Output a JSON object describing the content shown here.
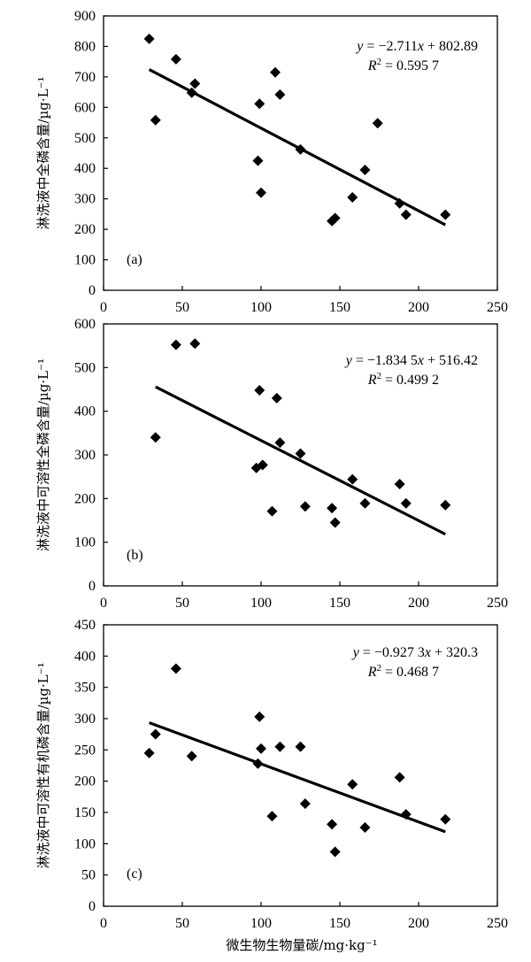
{
  "figure": {
    "xlabel_shared": "微生物生物量碳/mg·kg⁻¹"
  },
  "chart_data": [
    {
      "type": "scatter",
      "panel_label": "(a)",
      "ylabel": "淋洗液中全磷含量/µg·L⁻¹",
      "xlim": [
        0,
        250
      ],
      "ylim": [
        0,
        900
      ],
      "xticks": [
        0,
        50,
        100,
        150,
        200,
        250
      ],
      "yticks": [
        0,
        100,
        200,
        300,
        400,
        500,
        600,
        700,
        800,
        900
      ],
      "points": [
        {
          "x": 29,
          "y": 825
        },
        {
          "x": 33,
          "y": 558
        },
        {
          "x": 46,
          "y": 758
        },
        {
          "x": 56,
          "y": 648
        },
        {
          "x": 58,
          "y": 678
        },
        {
          "x": 98,
          "y": 425
        },
        {
          "x": 99,
          "y": 612
        },
        {
          "x": 100,
          "y": 320
        },
        {
          "x": 109,
          "y": 715
        },
        {
          "x": 112,
          "y": 642
        },
        {
          "x": 125,
          "y": 462
        },
        {
          "x": 145,
          "y": 227
        },
        {
          "x": 147,
          "y": 237
        },
        {
          "x": 158,
          "y": 305
        },
        {
          "x": 166,
          "y": 395
        },
        {
          "x": 174,
          "y": 548
        },
        {
          "x": 188,
          "y": 285
        },
        {
          "x": 192,
          "y": 248
        },
        {
          "x": 217,
          "y": 248
        }
      ],
      "fit": {
        "slope": -2.711,
        "intercept": 802.89,
        "x_range": [
          29,
          217
        ]
      },
      "equation": {
        "pre": "y",
        "mid": " = −2.711",
        "var": "x",
        "post": " + 802.89"
      },
      "r2": {
        "label": "R",
        "sup": "2",
        "value": " = 0.595 7"
      }
    },
    {
      "type": "scatter",
      "panel_label": "(b)",
      "ylabel": "淋洗液中可溶性全磷含量/µg·L⁻¹",
      "xlim": [
        0,
        250
      ],
      "ylim": [
        0,
        600
      ],
      "xticks": [
        0,
        50,
        100,
        150,
        200,
        250
      ],
      "yticks": [
        0,
        100,
        200,
        300,
        400,
        500,
        600
      ],
      "points": [
        {
          "x": 33,
          "y": 340
        },
        {
          "x": 46,
          "y": 552
        },
        {
          "x": 58,
          "y": 555
        },
        {
          "x": 97,
          "y": 270
        },
        {
          "x": 99,
          "y": 448
        },
        {
          "x": 101,
          "y": 277
        },
        {
          "x": 107,
          "y": 171
        },
        {
          "x": 110,
          "y": 430
        },
        {
          "x": 112,
          "y": 328
        },
        {
          "x": 125,
          "y": 303
        },
        {
          "x": 128,
          "y": 182
        },
        {
          "x": 145,
          "y": 178
        },
        {
          "x": 147,
          "y": 145
        },
        {
          "x": 158,
          "y": 244
        },
        {
          "x": 166,
          "y": 189
        },
        {
          "x": 188,
          "y": 233
        },
        {
          "x": 192,
          "y": 189
        },
        {
          "x": 217,
          "y": 185
        }
      ],
      "fit": {
        "slope": -1.8345,
        "intercept": 516.42,
        "x_range": [
          33,
          217
        ]
      },
      "equation": {
        "pre": "y",
        "mid": " = −1.834 5",
        "var": "x",
        "post": " + 516.42"
      },
      "r2": {
        "label": "R",
        "sup": "2",
        "value": " = 0.499 2"
      }
    },
    {
      "type": "scatter",
      "panel_label": "(c)",
      "ylabel": "淋洗液中可溶性有机磷含量/µg·L⁻¹",
      "xlim": [
        0,
        250
      ],
      "ylim": [
        0,
        450
      ],
      "xticks": [
        0,
        50,
        100,
        150,
        200,
        250
      ],
      "yticks": [
        0,
        50,
        100,
        150,
        200,
        250,
        300,
        350,
        400,
        450
      ],
      "points": [
        {
          "x": 29,
          "y": 245
        },
        {
          "x": 33,
          "y": 275
        },
        {
          "x": 46,
          "y": 380
        },
        {
          "x": 56,
          "y": 240
        },
        {
          "x": 98,
          "y": 228
        },
        {
          "x": 99,
          "y": 303
        },
        {
          "x": 100,
          "y": 252
        },
        {
          "x": 107,
          "y": 144
        },
        {
          "x": 112,
          "y": 255
        },
        {
          "x": 125,
          "y": 255
        },
        {
          "x": 128,
          "y": 164
        },
        {
          "x": 145,
          "y": 131
        },
        {
          "x": 147,
          "y": 87
        },
        {
          "x": 158,
          "y": 195
        },
        {
          "x": 166,
          "y": 126
        },
        {
          "x": 188,
          "y": 206
        },
        {
          "x": 192,
          "y": 147
        },
        {
          "x": 217,
          "y": 139
        }
      ],
      "fit": {
        "slope": -0.9273,
        "intercept": 320.3,
        "x_range": [
          29,
          217
        ]
      },
      "equation": {
        "pre": "y",
        "mid": " = −0.927 3",
        "var": "x",
        "post": " + 320.3"
      },
      "r2": {
        "label": "R",
        "sup": "2",
        "value": " = 0.468 7"
      }
    }
  ]
}
